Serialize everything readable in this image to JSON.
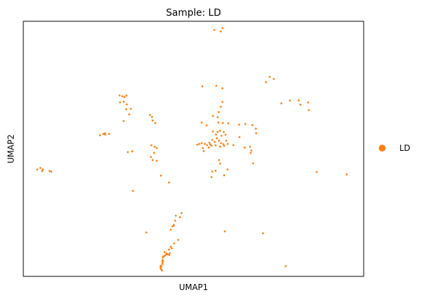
{
  "chart_data": {
    "type": "scatter",
    "title": "Sample: LD",
    "xlabel": "UMAP1",
    "ylabel": "UMAP2",
    "xticks": false,
    "yticks": false,
    "grid": false,
    "xlim": [
      0,
      100
    ],
    "ylim": [
      0,
      100
    ],
    "legend": {
      "position": "right",
      "entries": [
        "LD"
      ]
    },
    "series": [
      {
        "name": "LD",
        "color": "#ff7f0e",
        "points": [
          [
            56.1,
            96.6
          ],
          [
            58.0,
            96.0
          ],
          [
            58.5,
            97.3
          ],
          [
            71.3,
            76.1
          ],
          [
            72.4,
            78.2
          ],
          [
            73.6,
            77.4
          ],
          [
            52.6,
            74.5
          ],
          [
            56.7,
            74.7
          ],
          [
            58.5,
            73.7
          ],
          [
            28.3,
            70.9
          ],
          [
            29.1,
            70.6
          ],
          [
            29.7,
            70.3
          ],
          [
            30.3,
            70.9
          ],
          [
            28.4,
            68.2
          ],
          [
            29.5,
            68.5
          ],
          [
            30.4,
            67.4
          ],
          [
            30.2,
            65.5
          ],
          [
            31.6,
            65.7
          ],
          [
            31.1,
            63.5
          ],
          [
            29.5,
            60.9
          ],
          [
            37.2,
            63.3
          ],
          [
            37.8,
            62.5
          ],
          [
            38.8,
            60.1
          ],
          [
            38.0,
            61.1
          ],
          [
            22.5,
            55.3
          ],
          [
            23.5,
            55.8
          ],
          [
            24.1,
            55.6
          ],
          [
            25.2,
            55.8
          ],
          [
            24.0,
            56.1
          ],
          [
            30.7,
            48.7
          ],
          [
            32.0,
            49.0
          ],
          [
            37.6,
            51.4
          ],
          [
            38.6,
            50.8
          ],
          [
            39.2,
            50.3
          ],
          [
            38.4,
            48.4
          ],
          [
            37.5,
            46.8
          ],
          [
            38.0,
            45.6
          ],
          [
            39.2,
            45.3
          ],
          [
            4.1,
            41.9
          ],
          [
            5.0,
            42.5
          ],
          [
            5.5,
            41.3
          ],
          [
            7.7,
            41.3
          ],
          [
            8.2,
            41.1
          ],
          [
            5.7,
            41.9
          ],
          [
            58.5,
            68.4
          ],
          [
            58.0,
            66.5
          ],
          [
            57.4,
            64.4
          ],
          [
            57.1,
            62.4
          ],
          [
            55.7,
            62.9
          ],
          [
            52.4,
            60.3
          ],
          [
            53.9,
            59.2
          ],
          [
            57.3,
            60.3
          ],
          [
            58.6,
            60.1
          ],
          [
            60.2,
            60.0
          ],
          [
            63.4,
            59.5
          ],
          [
            65.2,
            59.7
          ],
          [
            67.3,
            59.3
          ],
          [
            68.3,
            57.9
          ],
          [
            68.4,
            56.1
          ],
          [
            51.1,
            51.6
          ],
          [
            51.7,
            51.9
          ],
          [
            52.4,
            52.2
          ],
          [
            53.3,
            51.9
          ],
          [
            54.0,
            51.4
          ],
          [
            52.8,
            50.3
          ],
          [
            53.0,
            49.1
          ],
          [
            54.7,
            52.4
          ],
          [
            55.5,
            53.5
          ],
          [
            56.2,
            52.7
          ],
          [
            56.9,
            54.1
          ],
          [
            57.5,
            53.2
          ],
          [
            58.2,
            55.1
          ],
          [
            58.1,
            52.2
          ],
          [
            56.6,
            55.6
          ],
          [
            55.7,
            56.8
          ],
          [
            57.1,
            56.6
          ],
          [
            57.8,
            57.1
          ],
          [
            58.9,
            56.6
          ],
          [
            59.4,
            55.5
          ],
          [
            59.6,
            53.2
          ],
          [
            60.1,
            51.9
          ],
          [
            55.3,
            51.2
          ],
          [
            56.5,
            51.4
          ],
          [
            57.8,
            50.9
          ],
          [
            59.0,
            51.1
          ],
          [
            54.5,
            50.5
          ],
          [
            63.5,
            54.6
          ],
          [
            61.7,
            51.4
          ],
          [
            65.0,
            50.5
          ],
          [
            66.6,
            50.8
          ],
          [
            67.0,
            49.3
          ],
          [
            66.8,
            48.4
          ],
          [
            67.5,
            44.3
          ],
          [
            57.5,
            45.6
          ],
          [
            57.8,
            44.2
          ],
          [
            55.5,
            41.1
          ],
          [
            56.5,
            41.4
          ],
          [
            55.3,
            38.9
          ],
          [
            59.0,
            39.6
          ],
          [
            60.0,
            41.9
          ],
          [
            40.4,
            39.5
          ],
          [
            42.8,
            36.8
          ],
          [
            32.2,
            33.5
          ],
          [
            46.5,
            24.8
          ],
          [
            46.0,
            23.2
          ],
          [
            44.8,
            23.8
          ],
          [
            44.6,
            21.8
          ],
          [
            44.2,
            20.2
          ],
          [
            44.2,
            19.9
          ],
          [
            45.5,
            14.3
          ],
          [
            44.3,
            12.9
          ],
          [
            43.3,
            11.6
          ],
          [
            43.6,
            11.0
          ],
          [
            42.8,
            10.5
          ],
          [
            41.5,
            9.5
          ],
          [
            42.1,
            8.8
          ],
          [
            41.5,
            8.0
          ],
          [
            41.1,
            7.8
          ],
          [
            41.0,
            7.4
          ],
          [
            40.9,
            6.4
          ],
          [
            41.0,
            5.9
          ],
          [
            40.9,
            5.5
          ],
          [
            40.8,
            4.8
          ],
          [
            40.3,
            4.1
          ],
          [
            40.6,
            3.9
          ],
          [
            40.3,
            3.3
          ],
          [
            40.5,
            2.8
          ],
          [
            40.7,
            2.5
          ],
          [
            40.7,
            2.3
          ],
          [
            41.9,
            8.5
          ],
          [
            42.1,
            9.0
          ],
          [
            42.4,
            8.6
          ],
          [
            42.9,
            8.4
          ],
          [
            43.0,
            9.1
          ],
          [
            43.8,
            19.6
          ],
          [
            43.3,
            18.3
          ],
          [
            36.1,
            17.2
          ],
          [
            59.2,
            17.6
          ],
          [
            70.4,
            16.9
          ],
          [
            77.1,
            4.0
          ],
          [
            75.8,
            67.8
          ],
          [
            78.3,
            68.9
          ],
          [
            80.9,
            69.0
          ],
          [
            83.7,
            68.2
          ],
          [
            83.9,
            65.2
          ],
          [
            81.4,
            67.3
          ],
          [
            86.2,
            40.9
          ],
          [
            95.0,
            40.0
          ],
          [
            54.9,
            51.7
          ],
          [
            58.8,
            51.8
          ]
        ]
      }
    ]
  }
}
